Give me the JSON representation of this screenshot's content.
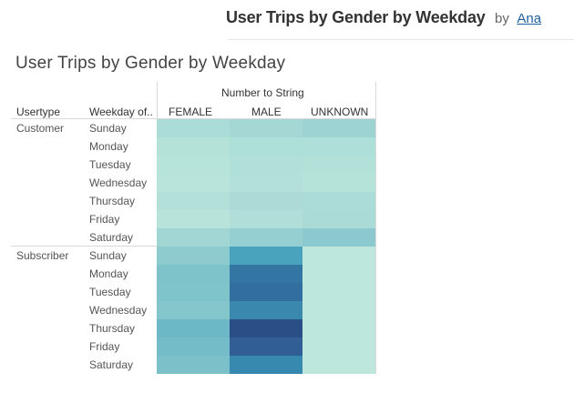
{
  "header": {
    "title": "User Trips by Gender by Weekday",
    "by": "by",
    "author": "Ana"
  },
  "viz": {
    "title": "User Trips by Gender by Weekday",
    "column_header": "Number to String",
    "row_headers": [
      "Usertype",
      "Weekday of.."
    ],
    "columns": [
      "FEMALE",
      "MALE",
      "UNKNOWN"
    ]
  },
  "chart_data": {
    "type": "heatmap",
    "title": "User Trips by Gender by Weekday",
    "x_title": "Number to String",
    "x": [
      "FEMALE",
      "MALE",
      "UNKNOWN"
    ],
    "groups": [
      {
        "name": "Customer",
        "rows": [
          "Sunday",
          "Monday",
          "Tuesday",
          "Wednesday",
          "Thursday",
          "Friday",
          "Saturday"
        ],
        "colors": [
          [
            "#abdcd8",
            "#a5d8d5",
            "#9dd4d3"
          ],
          [
            "#b4e2d9",
            "#ade0d9",
            "#aee0d9"
          ],
          [
            "#b6e3da",
            "#b0e0d9",
            "#b2e1d9"
          ],
          [
            "#b8e4db",
            "#b3e1da",
            "#b5e3da"
          ],
          [
            "#b3e1d9",
            "#add9d7",
            "#acdcd7"
          ],
          [
            "#b7e3da",
            "#afdfd8",
            "#aadbd7"
          ],
          [
            "#a2d6d4",
            "#96cfd1",
            "#8cc9cf"
          ]
        ]
      },
      {
        "name": "Subscriber",
        "rows": [
          "Sunday",
          "Monday",
          "Tuesday",
          "Wednesday",
          "Thursday",
          "Friday",
          "Saturday"
        ],
        "colors": [
          [
            "#8ecbce",
            "#4aa3bc",
            "#bde6dc"
          ],
          [
            "#7ec2ca",
            "#3476a3",
            "#bde6dc"
          ],
          [
            "#7fc3cb",
            "#326ea0",
            "#bde6dc"
          ],
          [
            "#85c6cc",
            "#3b88ae",
            "#bde6dc"
          ],
          [
            "#6db8c6",
            "#2a4f86",
            "#bde6dc"
          ],
          [
            "#74bcc8",
            "#305e95",
            "#bde6dc"
          ],
          [
            "#7cc1ca",
            "#3789b0",
            "#bde6dc"
          ]
        ]
      }
    ]
  }
}
